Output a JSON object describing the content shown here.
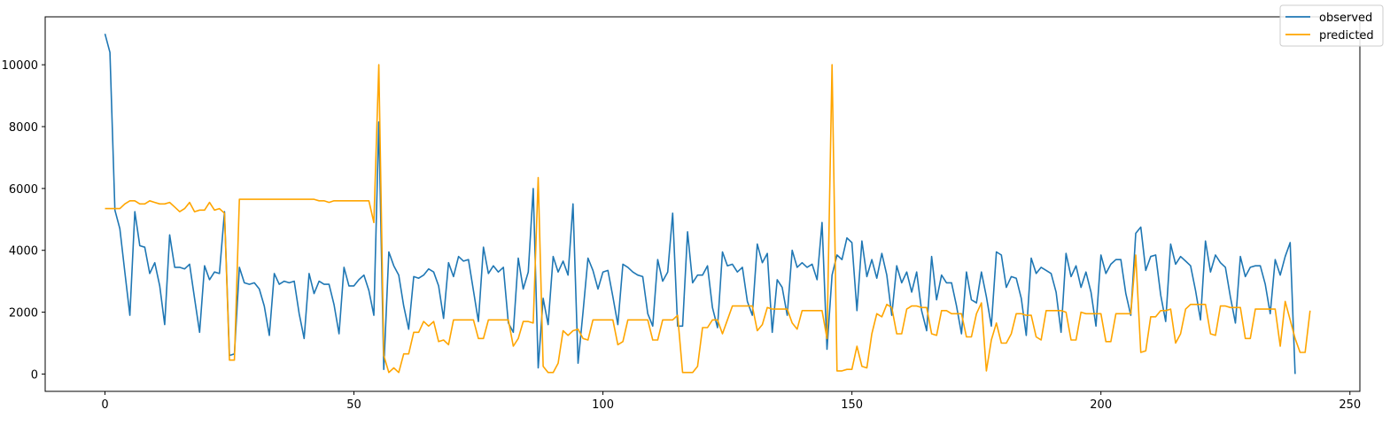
{
  "chart_data": {
    "type": "line",
    "title": "",
    "xlabel": "",
    "ylabel": "",
    "xlim": [
      -12,
      252
    ],
    "ylim": [
      -560,
      11550
    ],
    "xticks": [
      0,
      50,
      100,
      150,
      200,
      250
    ],
    "yticks": [
      0,
      2000,
      4000,
      6000,
      8000,
      10000
    ],
    "grid": false,
    "legend_position": "top-right",
    "series": [
      {
        "name": "observed",
        "color": "#1f77b4",
        "x_start": 0,
        "values": [
          11000,
          10400,
          5300,
          4700,
          3300,
          1900,
          5250,
          4150,
          4100,
          3250,
          3600,
          2850,
          1600,
          4500,
          3450,
          3450,
          3400,
          3550,
          2450,
          1350,
          3500,
          3050,
          3300,
          3250,
          5250,
          600,
          650,
          3450,
          2950,
          2900,
          2950,
          2750,
          2200,
          1250,
          3250,
          2900,
          3000,
          2950,
          3000,
          1950,
          1150,
          3250,
          2600,
          3000,
          2900,
          2900,
          2250,
          1300,
          3450,
          2850,
          2850,
          3050,
          3200,
          2700,
          1900,
          8150,
          150,
          3950,
          3500,
          3200,
          2200,
          1450,
          3150,
          3100,
          3200,
          3400,
          3300,
          2850,
          1800,
          3600,
          3150,
          3800,
          3650,
          3700,
          2700,
          1700,
          4100,
          3250,
          3500,
          3300,
          3450,
          1650,
          1350,
          3750,
          2750,
          3300,
          6000,
          200,
          2450,
          1600,
          3800,
          3300,
          3650,
          3200,
          5500,
          350,
          2000,
          3750,
          3350,
          2750,
          3300,
          3350,
          2500,
          1600,
          3550,
          3450,
          3300,
          3200,
          3150,
          1950,
          1550,
          3700,
          3000,
          3300,
          5200,
          1550,
          1550,
          4600,
          2950,
          3200,
          3200,
          3500,
          2150,
          1500,
          3950,
          3500,
          3550,
          3300,
          3450,
          2350,
          1900,
          4200,
          3600,
          3900,
          1350,
          3050,
          2800,
          1900,
          4000,
          3450,
          3600,
          3450,
          3550,
          3050,
          4900,
          800,
          3200,
          3850,
          3700,
          4400,
          4250,
          2050,
          4300,
          3150,
          3700,
          3100,
          3900,
          3200,
          1900,
          3500,
          2950,
          3300,
          2650,
          3300,
          2050,
          1400,
          3800,
          2400,
          3200,
          2950,
          2950,
          2200,
          1300,
          3300,
          2400,
          2300,
          3300,
          2500,
          1550,
          3950,
          3850,
          2800,
          3150,
          3100,
          2450,
          1250,
          3750,
          3250,
          3450,
          3350,
          3250,
          2650,
          1350,
          3900,
          3150,
          3500,
          2800,
          3300,
          2650,
          1550,
          3850,
          3250,
          3550,
          3700,
          3700,
          2600,
          1900,
          4550,
          4750,
          3350,
          3800,
          3850,
          2550,
          1700,
          4200,
          3550,
          3800,
          3650,
          3500,
          2700,
          1750,
          4300,
          3300,
          3850,
          3600,
          3450,
          2500,
          1650,
          3800,
          3150,
          3450,
          3500,
          3500,
          2900,
          1950,
          3700,
          3200,
          3800,
          4250,
          0
        ]
      },
      {
        "name": "predicted",
        "color": "#ffa500",
        "x_start": 0,
        "values": [
          5350,
          5350,
          5350,
          5350,
          5500,
          5600,
          5600,
          5500,
          5500,
          5600,
          5550,
          5500,
          5500,
          5550,
          5400,
          5250,
          5350,
          5550,
          5250,
          5300,
          5300,
          5550,
          5300,
          5350,
          5200,
          450,
          450,
          5650,
          5650,
          5650,
          5650,
          5650,
          5650,
          5650,
          5650,
          5650,
          5650,
          5650,
          5650,
          5650,
          5650,
          5650,
          5650,
          5600,
          5600,
          5550,
          5600,
          5600,
          5600,
          5600,
          5600,
          5600,
          5600,
          5600,
          4900,
          10000,
          600,
          50,
          200,
          50,
          650,
          650,
          1350,
          1350,
          1700,
          1550,
          1700,
          1050,
          1100,
          950,
          1750,
          1750,
          1750,
          1750,
          1750,
          1150,
          1150,
          1750,
          1750,
          1750,
          1750,
          1750,
          900,
          1150,
          1700,
          1700,
          1650,
          6350,
          250,
          50,
          50,
          350,
          1400,
          1250,
          1400,
          1450,
          1150,
          1100,
          1750,
          1750,
          1750,
          1750,
          1750,
          950,
          1050,
          1750,
          1750,
          1750,
          1750,
          1750,
          1100,
          1100,
          1750,
          1750,
          1750,
          1900,
          50,
          50,
          50,
          250,
          1500,
          1500,
          1750,
          1750,
          1300,
          1750,
          2200,
          2200,
          2200,
          2200,
          2200,
          1400,
          1600,
          2150,
          2100,
          2100,
          2100,
          2100,
          1650,
          1450,
          2050,
          2050,
          2050,
          2050,
          2050,
          1150,
          10000,
          100,
          100,
          150,
          150,
          900,
          250,
          200,
          1300,
          1950,
          1850,
          2250,
          2150,
          1300,
          1300,
          2100,
          2200,
          2200,
          2150,
          2150,
          1300,
          1250,
          2050,
          2050,
          1950,
          1950,
          1950,
          1200,
          1200,
          1950,
          2300,
          100,
          1100,
          1650,
          1000,
          1000,
          1300,
          1950,
          1950,
          1900,
          1900,
          1200,
          1100,
          2050,
          2050,
          2050,
          2050,
          2000,
          1100,
          1100,
          2000,
          1950,
          1950,
          1950,
          1950,
          1050,
          1050,
          1950,
          1950,
          1950,
          1950,
          3850,
          700,
          750,
          1850,
          1850,
          2050,
          2050,
          2100,
          1000,
          1300,
          2100,
          2250,
          2250,
          2250,
          2250,
          1300,
          1250,
          2200,
          2200,
          2150,
          2150,
          2150,
          1150,
          1150,
          2100,
          2100,
          2100,
          2100,
          2100,
          900,
          2350,
          1750,
          1150,
          700,
          700,
          2050
        ]
      }
    ]
  }
}
